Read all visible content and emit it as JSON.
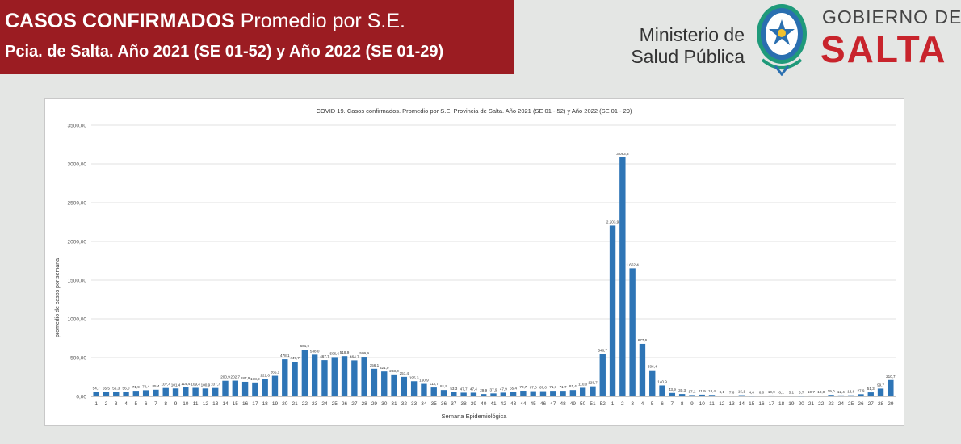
{
  "banner": {
    "title_bold": "CASOS CONFIRMADOS",
    "title_rest": "Promedio por S.E.",
    "subtitle": "Pcia. de Salta. Año 2021 (SE 01-52) y Año 2022 (SE 01-29)"
  },
  "logo": {
    "ministry_line1": "Ministerio de",
    "ministry_line2": "Salud Pública",
    "gov_line1": "GOBIERNO DE",
    "gov_line2": "SALTA"
  },
  "colors": {
    "banner": "#9b1c22",
    "bar": "#2e75b6",
    "salta": "#c8242c"
  },
  "chart_data": {
    "type": "bar",
    "title": "COVID 19. Casos confirmados. Promedio por S.E. Provincia de Salta. Año 2021 (SE 01 - 52) y Año 2022 (SE 01 - 29)",
    "xlabel": "Semana Epidemiológica",
    "ylabel": "promedio de casos por semana",
    "ylim": [
      0,
      3500
    ],
    "yticks": [
      "0,00",
      "500,00",
      "1000,00",
      "1500,00",
      "2000,00",
      "2500,00",
      "3000,00",
      "3500,00"
    ],
    "categories": [
      "1",
      "2",
      "3",
      "4",
      "5",
      "6",
      "7",
      "8",
      "9",
      "10",
      "11",
      "12",
      "13",
      "14",
      "15",
      "16",
      "17",
      "18",
      "19",
      "20",
      "21",
      "22",
      "23",
      "24",
      "25",
      "26",
      "27",
      "28",
      "29",
      "30",
      "31",
      "32",
      "33",
      "34",
      "35",
      "36",
      "37",
      "38",
      "39",
      "40",
      "41",
      "42",
      "43",
      "44",
      "45",
      "46",
      "47",
      "48",
      "49",
      "50",
      "51",
      "52",
      "1",
      "2",
      "3",
      "4",
      "5",
      "6",
      "7",
      "8",
      "9",
      "10",
      "11",
      "12",
      "13",
      "14",
      "15",
      "16",
      "17",
      "18",
      "19",
      "20",
      "21",
      "22",
      "23",
      "24",
      "25",
      "26",
      "27",
      "28",
      "29"
    ],
    "values": [
      54.7,
      55.5,
      56.3,
      56.0,
      71.9,
      79.4,
      85.4,
      107.4,
      101.4,
      114.4,
      109.4,
      100.9,
      107.7,
      200.9,
      202.7,
      187.9,
      178.9,
      221.6,
      265.1,
      478.1,
      447.7,
      601.9,
      538.0,
      467.7,
      506.6,
      518.9,
      464.7,
      509.9,
      356.1,
      321.0,
      283.0,
      251.4,
      195.3,
      160.9,
      113.7,
      81.9,
      53.3,
      47.7,
      47.4,
      29.9,
      37.9,
      47.9,
      55.4,
      72.7,
      67.0,
      67.0,
      71.7,
      71.7,
      81.4,
      110.0,
      128.7,
      548.7,
      2203.9,
      3083.3,
      1652.4,
      677.6,
      336.4,
      140.9,
      43.9,
      30.3,
      17.1,
      21.9,
      18.4,
      8.1,
      7.6,
      15.1,
      4.0,
      6.0,
      10.9,
      6.1,
      5.1,
      3.7,
      10.7,
      10.0,
      19.0,
      12.4,
      13.6,
      27.9,
      51.3,
      99.7,
      210.7
    ],
    "labels": [
      "54,7",
      "55,5",
      "56,3",
      "56,0",
      "71,9",
      "79,4",
      "85,4",
      "107,4",
      "101,4",
      "114,4",
      "109,4",
      "100,9",
      "107,7",
      "200,9",
      "202,7",
      "187,9",
      "178,9",
      "221,6",
      "265,1",
      "478,1",
      "447,7",
      "601,9",
      "538,0",
      "467,7",
      "506,6",
      "518,9",
      "464,7",
      "509,9",
      "356,1",
      "321,0",
      "283,0",
      "251,4",
      "195,3",
      "160,9",
      "113,7",
      "81,9",
      "53,3",
      "47,7",
      "47,4",
      "29,9",
      "37,9",
      "47,9",
      "55,4",
      "72,7",
      "67,0",
      "67,0",
      "71,7",
      "71,7",
      "81,4",
      "110,0",
      "128,7",
      "548,7",
      "2.203,9",
      "3.083,3",
      "1.652,4",
      "677,6",
      "336,4",
      "140,9",
      "43,9",
      "30,3",
      "17,1",
      "21,9",
      "18,4",
      "8,1",
      "7,6",
      "15,1",
      "4,0",
      "6,0",
      "10,9",
      "6,1",
      "5,1",
      "3,7",
      "10,7",
      "10,0",
      "19,0",
      "12,4",
      "13,6",
      "27,9",
      "51,3",
      "99,7",
      "210,7"
    ]
  }
}
